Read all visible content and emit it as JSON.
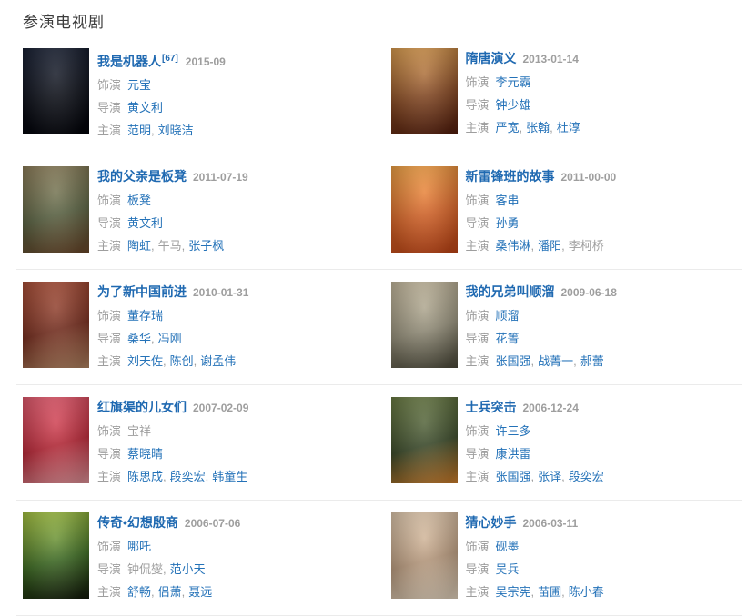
{
  "section": {
    "title": "参演电视剧"
  },
  "labels": {
    "role": "饰演",
    "director": "导演",
    "stars": "主演",
    "comma": ","
  },
  "colors": {
    "title_link": "#1f69b1",
    "name_link": "#2472b8",
    "label_gray": "#9e9e9e",
    "divider": "#ebebeb"
  },
  "shows": [
    {
      "title": "我是机器人",
      "ref": "[67]",
      "date": "2015-09",
      "poster_colors": [
        "#121a2e",
        "#0a0d16",
        "#03040a"
      ],
      "roles": [
        {
          "text": "元宝",
          "link": true
        }
      ],
      "directors": [
        {
          "text": "黄文利",
          "link": true
        }
      ],
      "stars": [
        {
          "text": "范明",
          "link": true
        },
        {
          "text": "刘晓洁",
          "link": true
        }
      ]
    },
    {
      "title": "隋唐演义",
      "ref": "",
      "date": "2013-01-14",
      "poster_colors": [
        "#d99a4a",
        "#8a4a22",
        "#551e0e"
      ],
      "roles": [
        {
          "text": "李元霸",
          "link": true
        }
      ],
      "directors": [
        {
          "text": "钟少雄",
          "link": true
        }
      ],
      "stars": [
        {
          "text": "严宽",
          "link": true
        },
        {
          "text": "张翰",
          "link": true
        },
        {
          "text": "杜淳",
          "link": true
        }
      ]
    },
    {
      "title": "我的父亲是板凳",
      "ref": "",
      "date": "2011-07-19",
      "poster_colors": [
        "#8a7a55",
        "#5d6644",
        "#6e4a2c"
      ],
      "roles": [
        {
          "text": "板凳",
          "link": true
        }
      ],
      "directors": [
        {
          "text": "黄文利",
          "link": true
        }
      ],
      "stars": [
        {
          "text": "陶虹",
          "link": true
        },
        {
          "text": "午马",
          "link": false
        },
        {
          "text": "张子枫",
          "link": true
        }
      ]
    },
    {
      "title": "新雷锋班的故事",
      "ref": "",
      "date": "2011-00-00",
      "poster_colors": [
        "#f0a040",
        "#e06828",
        "#c84818"
      ],
      "roles": [
        {
          "text": "客串",
          "link": true
        }
      ],
      "directors": [
        {
          "text": "孙勇",
          "link": true
        }
      ],
      "stars": [
        {
          "text": "桑伟淋",
          "link": true
        },
        {
          "text": "潘阳",
          "link": true
        },
        {
          "text": "李柯桥",
          "link": false
        }
      ]
    },
    {
      "title": "为了新中国前进",
      "ref": "",
      "date": "2010-01-31",
      "poster_colors": [
        "#a84a32",
        "#7a2e1e",
        "#b98a66"
      ],
      "roles": [
        {
          "text": "董存瑞",
          "link": true
        }
      ],
      "directors": [
        {
          "text": "桑华",
          "link": true
        },
        {
          "text": "冯刚",
          "link": true
        }
      ],
      "stars": [
        {
          "text": "刘天佐",
          "link": true
        },
        {
          "text": "陈创",
          "link": true
        },
        {
          "text": "谢孟伟",
          "link": true
        }
      ]
    },
    {
      "title": "我的兄弟叫顺溜",
      "ref": "",
      "date": "2009-06-18",
      "poster_colors": [
        "#c4b89c",
        "#9a947e",
        "#4e4c3c"
      ],
      "roles": [
        {
          "text": "顺溜",
          "link": true
        }
      ],
      "directors": [
        {
          "text": "花箐",
          "link": true
        }
      ],
      "stars": [
        {
          "text": "张国强",
          "link": true
        },
        {
          "text": "战菁一",
          "link": true
        },
        {
          "text": "郝蕾",
          "link": true
        }
      ]
    },
    {
      "title": "红旗渠的儿女们",
      "ref": "",
      "date": "2007-02-09",
      "poster_colors": [
        "#e2566a",
        "#c02838",
        "#e89aa0"
      ],
      "roles": [
        {
          "text": "宝祥",
          "link": false
        }
      ],
      "directors": [
        {
          "text": "蔡晓晴",
          "link": true
        }
      ],
      "stars": [
        {
          "text": "陈思成",
          "link": true
        },
        {
          "text": "段奕宏",
          "link": true
        },
        {
          "text": "韩童生",
          "link": true
        }
      ]
    },
    {
      "title": "士兵突击",
      "ref": "",
      "date": "2006-12-24",
      "poster_colors": [
        "#66783e",
        "#3c4c2a",
        "#d8842e"
      ],
      "roles": [
        {
          "text": "许三多",
          "link": true
        }
      ],
      "directors": [
        {
          "text": "康洪雷",
          "link": true
        }
      ],
      "stars": [
        {
          "text": "张国强",
          "link": true
        },
        {
          "text": "张译",
          "link": true
        },
        {
          "text": "段奕宏",
          "link": true
        }
      ]
    },
    {
      "title": "传奇•幻想殷商",
      "ref": "",
      "date": "2006-07-06",
      "poster_colors": [
        "#a4c23c",
        "#3e6e22",
        "#141a0c"
      ],
      "roles": [
        {
          "text": "哪吒",
          "link": true
        }
      ],
      "directors": [
        {
          "text": "钟侃燮",
          "link": false
        },
        {
          "text": "范小天",
          "link": true
        }
      ],
      "stars": [
        {
          "text": "舒畅",
          "link": true
        },
        {
          "text": "侣萧",
          "link": true
        },
        {
          "text": "聂远",
          "link": true
        }
      ]
    },
    {
      "title": "猜心妙手",
      "ref": "",
      "date": "2006-03-11",
      "poster_colors": [
        "#e0c8ac",
        "#c2a284",
        "#ecdcc6"
      ],
      "roles": [
        {
          "text": "砚墨",
          "link": true
        }
      ],
      "directors": [
        {
          "text": "吴兵",
          "link": true
        }
      ],
      "stars": [
        {
          "text": "吴宗宪",
          "link": true
        },
        {
          "text": "苗圃",
          "link": true
        },
        {
          "text": "陈小春",
          "link": true
        }
      ]
    }
  ]
}
